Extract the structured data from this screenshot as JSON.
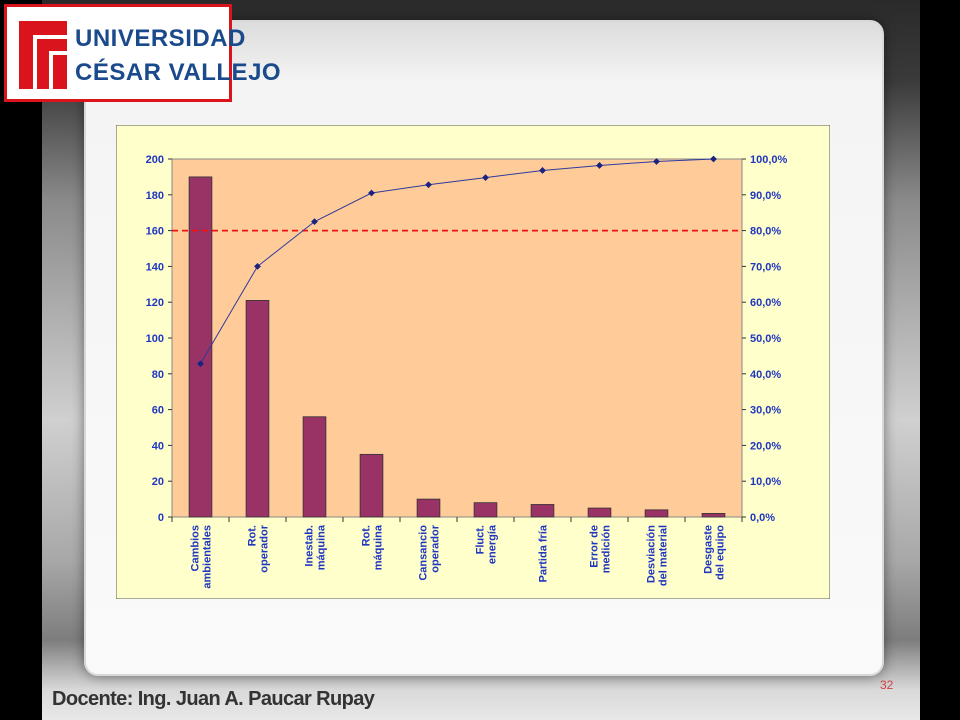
{
  "logo": {
    "line1": "UNIVERSIDAD",
    "line2": "CÉSAR VALLEJO",
    "colors": {
      "red": "#d9141c",
      "blue": "#1a4a8c"
    }
  },
  "footer": {
    "instructor": "Docente: Ing. Juan A. Paucar Rupay",
    "page_number": "32"
  },
  "chart_data": {
    "type": "bar",
    "categories": [
      [
        "Cambios",
        "ambientales"
      ],
      [
        "Rot.",
        "operador"
      ],
      [
        "Inestab.",
        "máquina"
      ],
      [
        "Rot.",
        "máquina"
      ],
      [
        "Cansancio",
        "operador"
      ],
      [
        "Fluct.",
        "energía"
      ],
      [
        "Partida fría"
      ],
      [
        "Error de",
        "medición"
      ],
      [
        "Desviación",
        "del material"
      ],
      [
        "Desgaste",
        "del equipo"
      ]
    ],
    "series": [
      {
        "type": "bar",
        "axis": "left",
        "values": [
          190,
          121,
          56,
          35,
          10,
          8,
          7,
          5,
          4,
          2
        ]
      },
      {
        "type": "line",
        "axis": "right",
        "values": [
          42.8,
          70.0,
          82.5,
          90.5,
          92.8,
          94.8,
          96.8,
          98.2,
          99.3,
          100.0
        ]
      }
    ],
    "reference_line": {
      "axis": "right",
      "value": 80.0,
      "style": "dashed"
    },
    "y_left": {
      "min": 0,
      "max": 200,
      "ticks": [
        "0",
        "20",
        "40",
        "60",
        "80",
        "100",
        "120",
        "140",
        "160",
        "180",
        "200"
      ]
    },
    "y_right": {
      "min": 0,
      "max": 100,
      "ticks": [
        "0,0%",
        "10,0%",
        "20,0%",
        "30,0%",
        "40,0%",
        "50,0%",
        "60,0%",
        "70,0%",
        "80,0%",
        "90,0%",
        "100,0%"
      ]
    },
    "grid": false,
    "legend": "none",
    "colors": {
      "bar": "#993366",
      "line": "#2e3a9e",
      "reference": "#ee1111",
      "plot_bg": "#ffcc99",
      "chart_bg": "#ffffcc",
      "axis_text": "#1f36c0"
    }
  }
}
